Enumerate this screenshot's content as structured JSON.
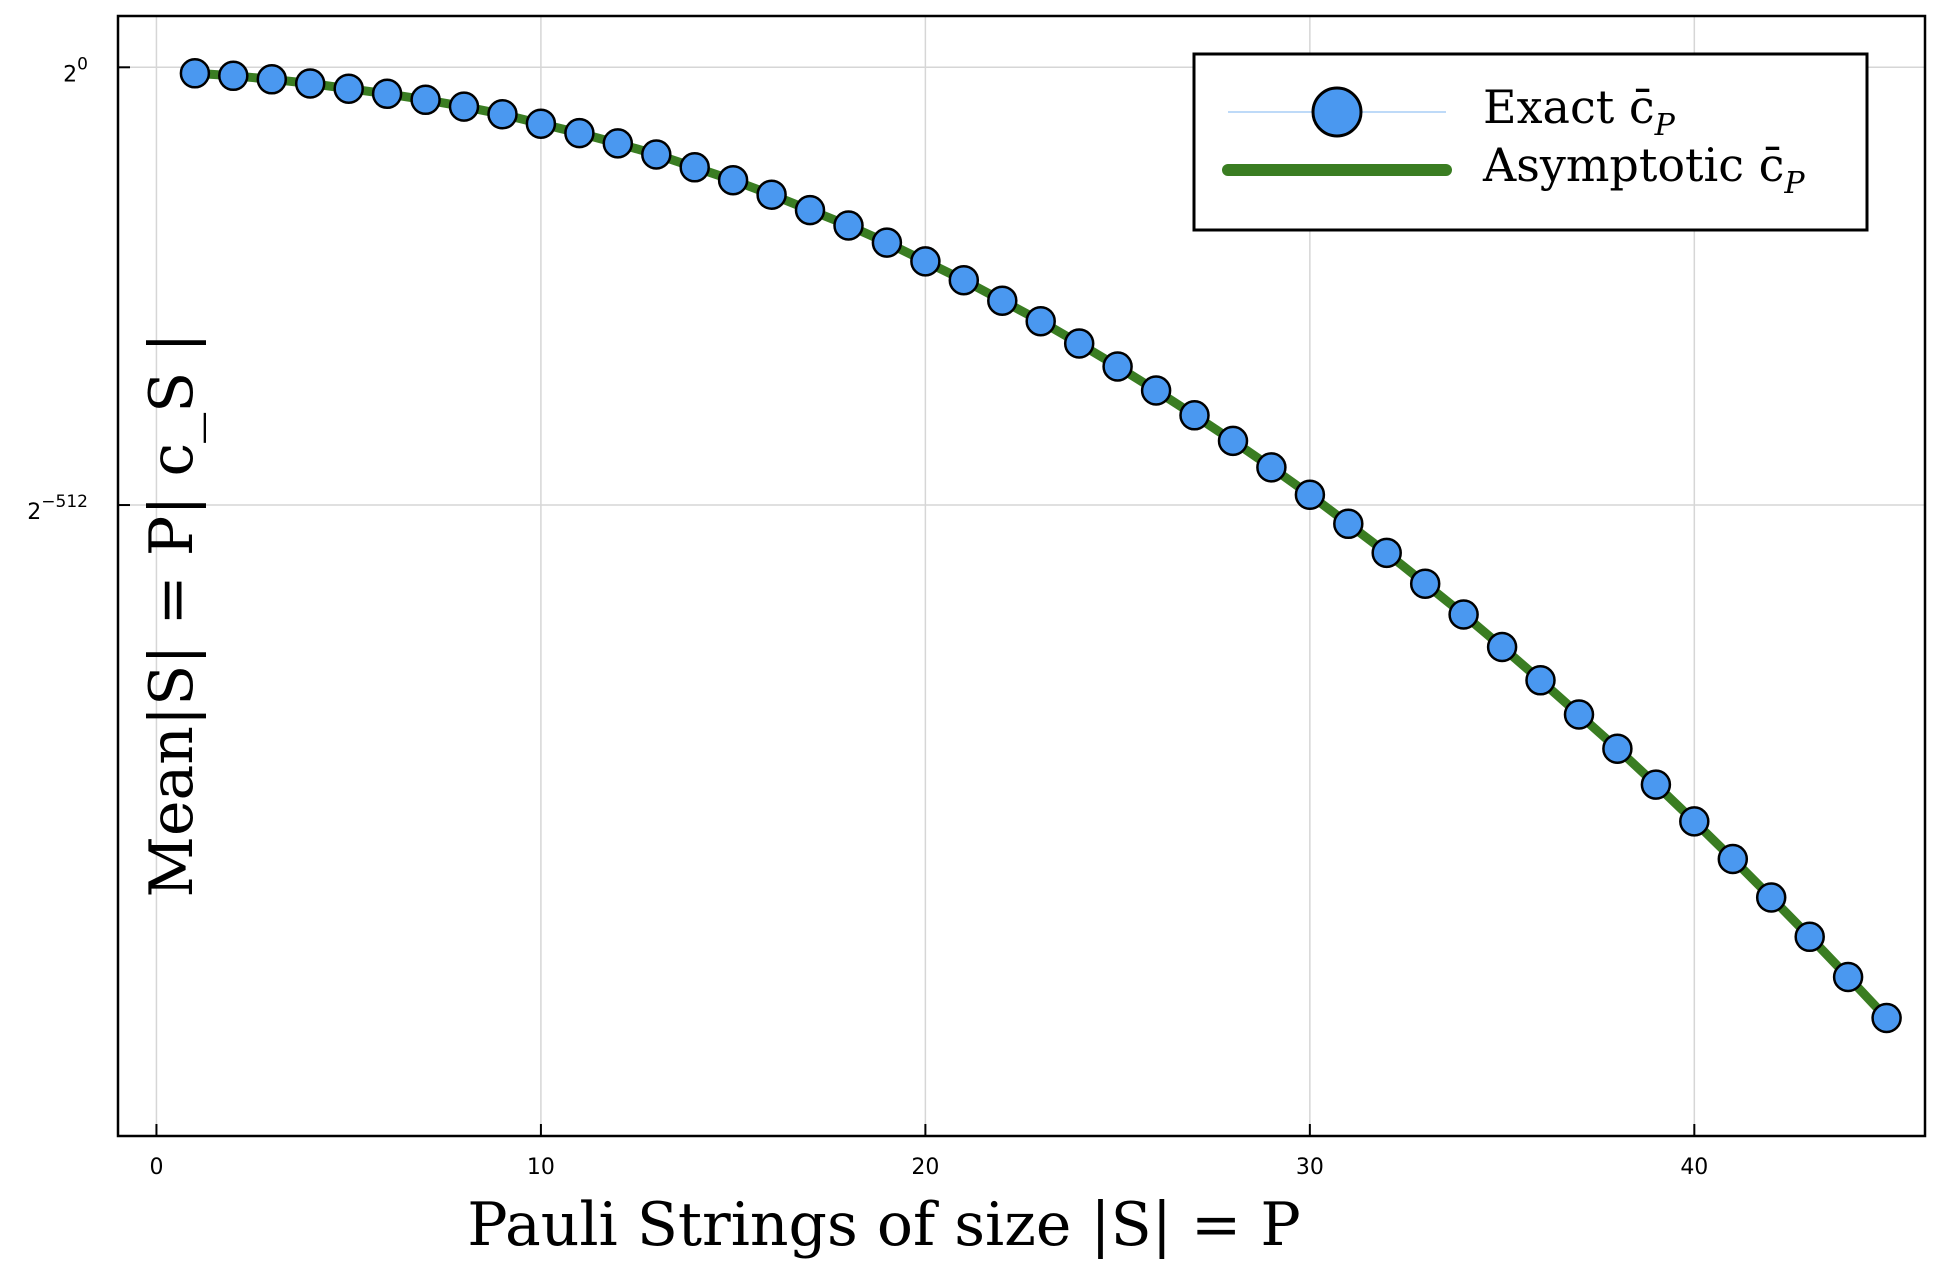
{
  "chart_data": {
    "type": "line",
    "xlabel": "Pauli Strings of size |S| = P",
    "ylabel": "Mean|S| = P| c_S |",
    "xlim": [
      -1,
      46
    ],
    "ylim": [
      -1250,
      60
    ],
    "y_scale": "log2",
    "grid": true,
    "legend_position": "top-right",
    "x_ticks": [
      {
        "value": 0,
        "label": "0"
      },
      {
        "value": 10,
        "label": "10"
      },
      {
        "value": 20,
        "label": "20"
      },
      {
        "value": 30,
        "label": "30"
      },
      {
        "value": 40,
        "label": "40"
      }
    ],
    "y_ticks": [
      {
        "value": 0,
        "base": "2",
        "exp": "0"
      },
      {
        "value": -512,
        "base": "2",
        "exp": "−512"
      }
    ],
    "series": [
      {
        "name": "Exact c̄",
        "name_sub": "P",
        "style": "markers",
        "color": "#4a98f0",
        "edge_color": "#000000",
        "x": [
          1,
          2,
          3,
          4,
          5,
          6,
          7,
          8,
          9,
          10,
          11,
          12,
          13,
          14,
          15,
          16,
          17,
          18,
          19,
          20,
          21,
          22,
          23,
          24,
          25,
          26,
          27,
          28,
          29,
          30,
          31,
          32,
          33,
          34,
          35,
          36,
          37,
          38,
          39,
          40,
          41,
          42,
          43,
          44,
          45
        ],
        "y": [
          -7,
          -10,
          -14,
          -19,
          -25,
          -31,
          -38,
          -46,
          -55,
          -66,
          -77,
          -89,
          -102,
          -117,
          -132,
          -149,
          -167,
          -185,
          -205,
          -227,
          -249,
          -273,
          -297,
          -323,
          -350,
          -378,
          -407,
          -437,
          -468,
          -500,
          -534,
          -568,
          -604,
          -640,
          -678,
          -717,
          -757,
          -797,
          -839,
          -882,
          -926,
          -971,
          -1017,
          -1064,
          -1112
        ]
      },
      {
        "name": "Asymptotic c̄",
        "name_sub": "P",
        "style": "line",
        "color": "#3a7d22",
        "x": [
          1,
          2,
          3,
          4,
          5,
          6,
          7,
          8,
          9,
          10,
          11,
          12,
          13,
          14,
          15,
          16,
          17,
          18,
          19,
          20,
          21,
          22,
          23,
          24,
          25,
          26,
          27,
          28,
          29,
          30,
          31,
          32,
          33,
          34,
          35,
          36,
          37,
          38,
          39,
          40,
          41,
          42,
          43,
          44,
          45
        ],
        "y": [
          -7,
          -10,
          -14,
          -19,
          -25,
          -31,
          -38,
          -46,
          -55,
          -66,
          -77,
          -89,
          -102,
          -117,
          -132,
          -149,
          -167,
          -185,
          -205,
          -227,
          -249,
          -273,
          -297,
          -323,
          -350,
          -378,
          -407,
          -437,
          -468,
          -500,
          -534,
          -568,
          -604,
          -640,
          -678,
          -717,
          -757,
          -797,
          -839,
          -882,
          -926,
          -971,
          -1017,
          -1064,
          -1112
        ]
      }
    ]
  },
  "colors": {
    "grid": "#d6d6d6",
    "axis": "#000000",
    "legend_line_exact": "#a9cdf5"
  }
}
